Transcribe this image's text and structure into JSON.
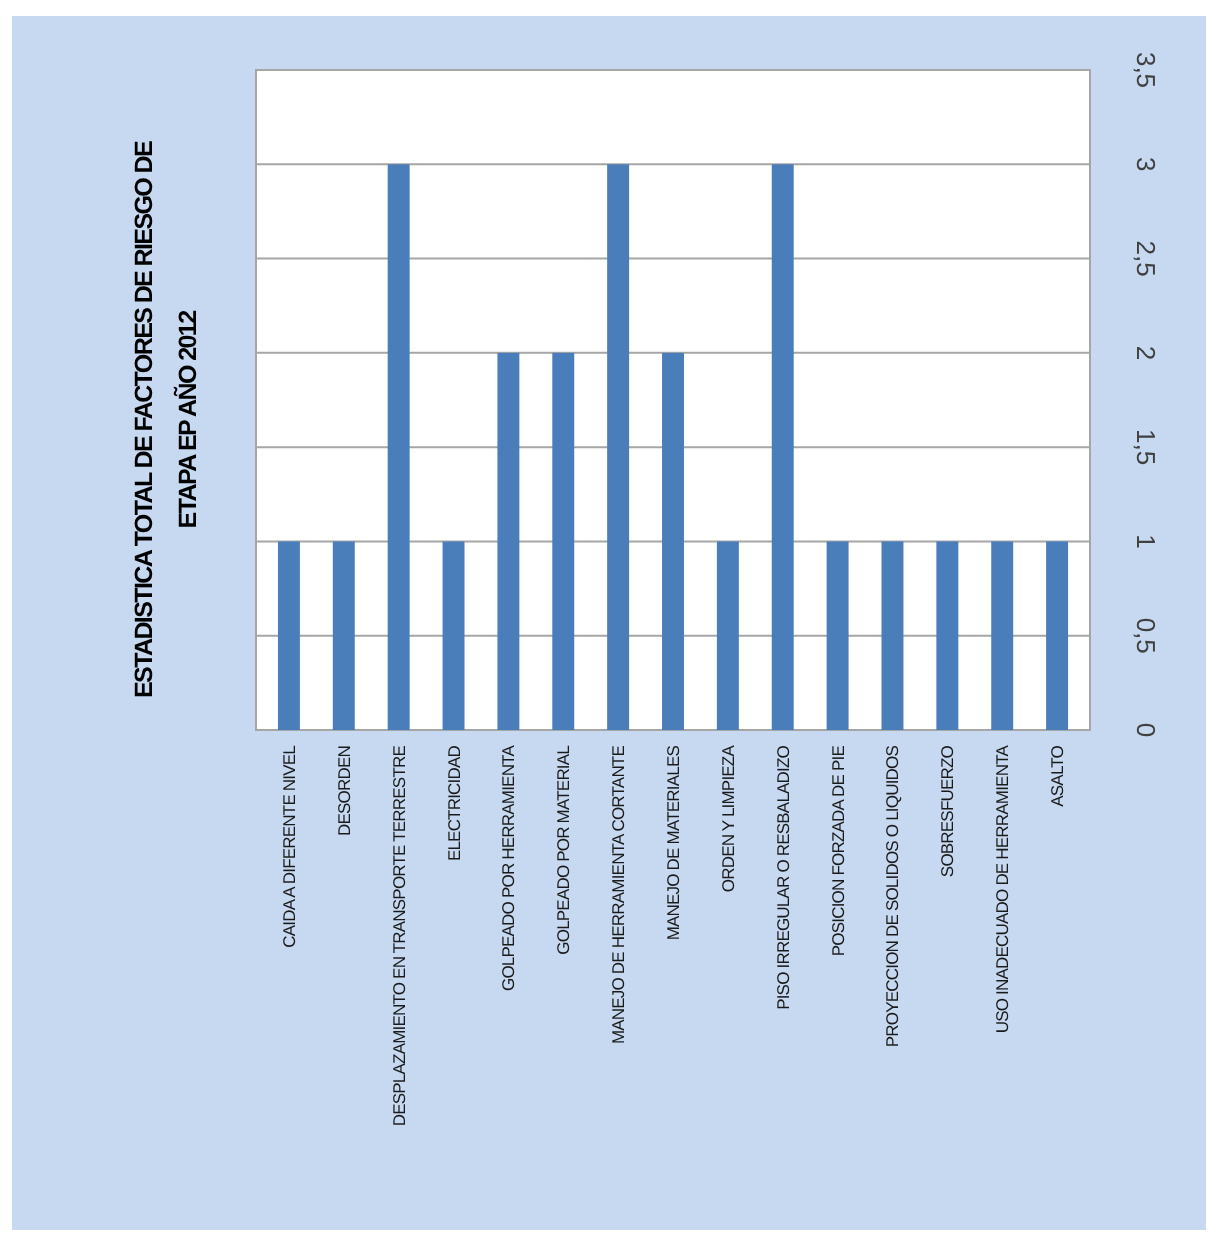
{
  "chart_data": {
    "type": "bar",
    "title": "ESTADISTICA TOTAL DE FACTORES DE RIESGO DE\nETAPA EP AÑO 2012",
    "categories": [
      "CAIDA A DIFERENTE NIVEL",
      "DESORDEN",
      "DESPLAZAMIENTO EN TRANSPORTE TERRESTRE",
      "ELECTRICIDAD",
      "GOLPEADO POR HERRAMIENTA",
      "GOLPEADO POR MATERIAL",
      "MANEJO DE HERRAMIENTA CORTANTE",
      "MANEJO DE MATERIALES",
      "ORDEN Y LIMPIEZA",
      "PISO IRREGULAR O RESBALADIZO",
      "POSICION FORZADA DE PIE",
      "PROYECCION DE SOLIDOS O LIQUIDOS",
      "SOBRESFUERZO",
      "USO INADECUADO DE HERRAMIENTA",
      "ASALTO"
    ],
    "values": [
      1,
      1,
      3,
      1,
      2,
      2,
      3,
      2,
      1,
      3,
      1,
      1,
      1,
      1,
      1
    ],
    "color": "#4a7ebb",
    "ylim": [
      0,
      3.5
    ],
    "yticks": [
      {
        "value": 0,
        "label": "0"
      },
      {
        "value": 0.5,
        "label": "0,5"
      },
      {
        "value": 1,
        "label": "1"
      },
      {
        "value": 1.5,
        "label": "1,5"
      },
      {
        "value": 2,
        "label": "2"
      },
      {
        "value": 2.5,
        "label": "2,5"
      },
      {
        "value": 3,
        "label": "3"
      },
      {
        "value": 3.5,
        "label": "3,5"
      }
    ],
    "grid": "y"
  }
}
